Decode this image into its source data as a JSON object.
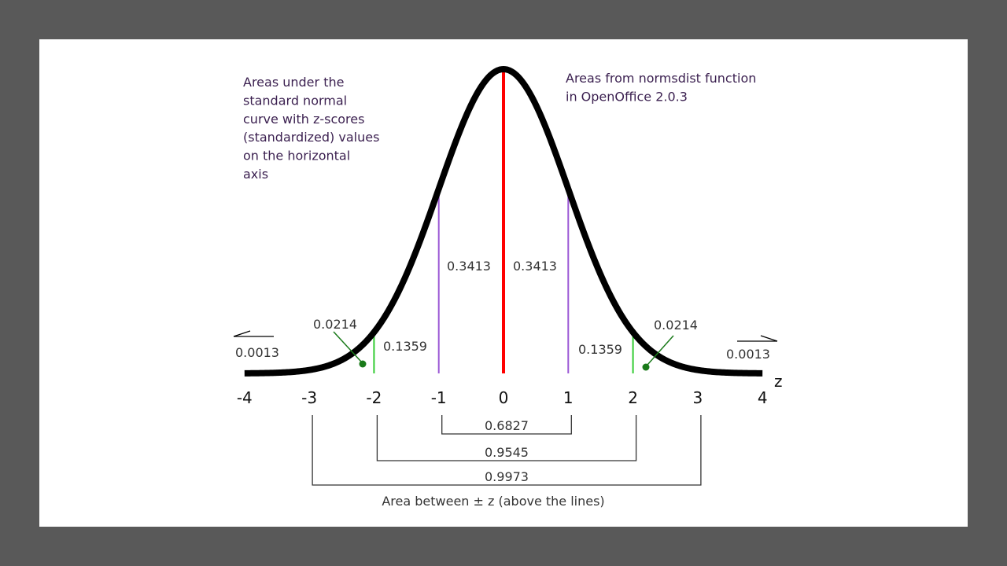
{
  "chart_data": {
    "type": "line",
    "title": "",
    "xlabel": "z",
    "ylabel": "",
    "xlim": [
      -4,
      4
    ],
    "grid": false,
    "curve": {
      "name": "standard normal density",
      "mean": 0,
      "sd": 1
    },
    "x_ticks": [
      "-4",
      "-3",
      "-2",
      "-1",
      "0",
      "1",
      "2",
      "3",
      "4"
    ],
    "x_tick_values": [
      -4,
      -3,
      -2,
      -1,
      0,
      1,
      2,
      3,
      4
    ],
    "vertical_lines": [
      {
        "z": 0,
        "color": "#ff0000"
      },
      {
        "z": -1,
        "color": "#9b59d6"
      },
      {
        "z": 1,
        "color": "#9b59d6"
      },
      {
        "z": -2,
        "color": "#33cc33"
      },
      {
        "z": 2,
        "color": "#33cc33"
      }
    ],
    "region_labels": [
      {
        "text": "0.3413",
        "from": -1,
        "to": 0
      },
      {
        "text": "0.3413",
        "from": 0,
        "to": 1
      },
      {
        "text": "0.1359",
        "from": -2,
        "to": -1
      },
      {
        "text": "0.1359",
        "from": 1,
        "to": 2
      },
      {
        "text": "0.0214",
        "from": -3,
        "to": -2
      },
      {
        "text": "0.0214",
        "from": 2,
        "to": 3
      },
      {
        "text": "0.0013",
        "from": -4,
        "to": -3
      },
      {
        "text": "0.0013",
        "from": 3,
        "to": 4
      }
    ],
    "brackets": [
      {
        "from": -1,
        "to": 1,
        "label": "0.6827"
      },
      {
        "from": -2,
        "to": 2,
        "label": "0.9545"
      },
      {
        "from": -3,
        "to": 3,
        "label": "0.9973"
      }
    ],
    "bracket_caption": "Area between ± z (above the lines)",
    "annotation_left": [
      "Areas under the",
      "standard normal",
      "curve with z-scores",
      "(standardized) values",
      "on the horizontal",
      "axis"
    ],
    "annotation_right": [
      "Areas from normsdist function",
      "in OpenOffice 2.0.3"
    ],
    "colors": {
      "curve": "#000000",
      "mean_line": "#ff0000",
      "sd1_lines": "#9b59d6",
      "sd2_lines": "#33cc33",
      "marker_dot": "#1a7a1a",
      "bracket": "#333333"
    }
  }
}
